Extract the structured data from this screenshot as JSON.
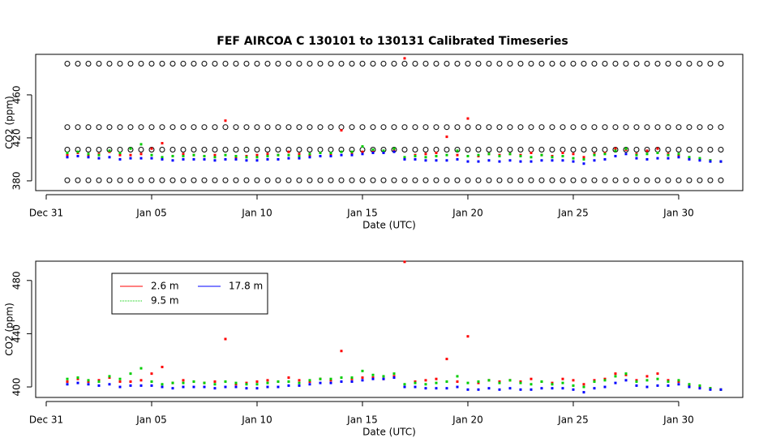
{
  "chart_data": [
    {
      "type": "scatter",
      "title": "FEF   AIRCOA  C    130101  to  130131   Calibrated Timeseries",
      "x_label": "Date (UTC)",
      "y_label": "CO2 (ppm)",
      "xlim": [
        -0.5,
        33.04
      ],
      "ylim": [
        370.9,
        497.7
      ],
      "xticks": [
        {
          "value": 0,
          "label": "Dec 31"
        },
        {
          "value": 5,
          "label": "Jan 05"
        },
        {
          "value": 10,
          "label": "Jan 10"
        },
        {
          "value": 15,
          "label": "Jan 15"
        },
        {
          "value": 20,
          "label": "Jan 20"
        },
        {
          "value": 25,
          "label": "Jan 25"
        },
        {
          "value": 30,
          "label": "Jan 30"
        }
      ],
      "yticks": [
        380,
        420,
        460
      ],
      "reference_levels": [
        380.5,
        409,
        430,
        489
      ],
      "x": [
        1,
        1.5,
        2,
        2.5,
        3,
        3.5,
        4,
        4.5,
        5,
        5.5,
        6,
        6.5,
        7,
        7.5,
        8,
        8.5,
        9,
        9.5,
        10,
        10.5,
        11,
        11.5,
        12,
        12.5,
        13,
        13.5,
        14,
        14.5,
        15,
        15.5,
        16,
        16.5,
        17,
        17.5,
        18,
        18.5,
        19,
        19.5,
        20,
        20.5,
        21,
        21.5,
        22,
        22.5,
        23,
        23.5,
        24,
        24.5,
        25,
        25.5,
        26,
        26.5,
        27,
        27.5,
        28,
        28.5,
        29,
        29.5,
        30,
        30.5,
        31,
        31.5,
        32
      ],
      "series": [
        {
          "color": "#ff0000",
          "values": [
            404,
            406,
            404,
            405,
            407,
            404,
            404,
            405,
            410,
            415,
            403,
            405,
            404,
            403,
            404,
            436,
            402,
            403,
            404,
            405,
            404,
            407,
            405,
            404,
            406,
            405,
            427,
            406,
            407,
            407,
            406,
            408,
            494,
            404,
            405,
            406,
            421,
            404,
            438,
            403,
            405,
            404,
            405,
            404,
            406,
            404,
            403,
            406,
            405,
            402,
            405,
            406,
            410,
            409,
            405,
            408,
            410,
            405,
            404,
            401,
            400,
            399,
            398
          ]
        },
        {
          "color": "#00cd00",
          "values": [
            406,
            407,
            405,
            404,
            408,
            406,
            410,
            414,
            404,
            402,
            403,
            403,
            404,
            403,
            402,
            404,
            403,
            402,
            402,
            403,
            404,
            404,
            403,
            405,
            406,
            406,
            407,
            407,
            412,
            409,
            408,
            410,
            402,
            403,
            402,
            403,
            404,
            408,
            403,
            404,
            405,
            403,
            405,
            403,
            402,
            404,
            402,
            403,
            401,
            400,
            404,
            405,
            408,
            410,
            404,
            405,
            406,
            404,
            405,
            402,
            401,
            399,
            398
          ]
        },
        {
          "color": "#0000ff",
          "values": [
            402,
            403,
            402,
            401,
            402,
            400,
            401,
            401,
            401,
            400,
            399,
            400,
            400,
            400,
            399,
            400,
            400,
            399,
            399,
            400,
            400,
            401,
            401,
            402,
            403,
            403,
            404,
            404,
            405,
            406,
            406,
            407,
            400,
            400,
            399,
            399,
            399,
            400,
            398,
            398,
            399,
            398,
            399,
            398,
            398,
            399,
            399,
            399,
            398,
            396,
            399,
            400,
            403,
            405,
            401,
            400,
            401,
            401,
            402,
            400,
            399,
            398,
            398
          ]
        }
      ]
    },
    {
      "type": "scatter",
      "x_label": "Date (UTC)",
      "y_label": "CO2 (ppm)",
      "xlim": [
        -0.5,
        33.04
      ],
      "ylim": [
        392.1,
        494.5
      ],
      "xticks": [
        {
          "value": 0,
          "label": "Dec 31"
        },
        {
          "value": 5,
          "label": "Jan 05"
        },
        {
          "value": 10,
          "label": "Jan 10"
        },
        {
          "value": 15,
          "label": "Jan 15"
        },
        {
          "value": 20,
          "label": "Jan 20"
        },
        {
          "value": 25,
          "label": "Jan 25"
        },
        {
          "value": 30,
          "label": "Jan 30"
        }
      ],
      "yticks": [
        400,
        440,
        480
      ],
      "legend": "top-left",
      "x": [
        1,
        1.5,
        2,
        2.5,
        3,
        3.5,
        4,
        4.5,
        5,
        5.5,
        6,
        6.5,
        7,
        7.5,
        8,
        8.5,
        9,
        9.5,
        10,
        10.5,
        11,
        11.5,
        12,
        12.5,
        13,
        13.5,
        14,
        14.5,
        15,
        15.5,
        16,
        16.5,
        17,
        17.5,
        18,
        18.5,
        19,
        19.5,
        20,
        20.5,
        21,
        21.5,
        22,
        22.5,
        23,
        23.5,
        24,
        24.5,
        25,
        25.5,
        26,
        26.5,
        27,
        27.5,
        28,
        28.5,
        29,
        29.5,
        30,
        30.5,
        31,
        31.5,
        32
      ],
      "series": [
        {
          "name": "2.6 m",
          "color": "#ff0000",
          "values": [
            404,
            406,
            404,
            405,
            407,
            404,
            404,
            405,
            410,
            415,
            403,
            405,
            404,
            403,
            404,
            436,
            402,
            403,
            404,
            405,
            404,
            407,
            405,
            404,
            406,
            405,
            427,
            406,
            407,
            407,
            406,
            408,
            494,
            404,
            405,
            406,
            421,
            404,
            438,
            403,
            405,
            404,
            405,
            404,
            406,
            404,
            403,
            406,
            405,
            402,
            405,
            406,
            410,
            409,
            405,
            408,
            410,
            405,
            404,
            401,
            400,
            399,
            398
          ]
        },
        {
          "name": "9.5 m",
          "color": "#00cd00",
          "values": [
            406,
            407,
            405,
            404,
            408,
            406,
            410,
            414,
            404,
            402,
            403,
            403,
            404,
            403,
            402,
            404,
            403,
            402,
            402,
            403,
            404,
            404,
            403,
            405,
            406,
            406,
            407,
            407,
            412,
            409,
            408,
            410,
            402,
            403,
            402,
            403,
            404,
            408,
            403,
            404,
            405,
            403,
            405,
            403,
            402,
            404,
            402,
            403,
            401,
            400,
            404,
            405,
            408,
            410,
            404,
            405,
            406,
            404,
            405,
            402,
            401,
            399,
            398
          ]
        },
        {
          "name": "17.8 m",
          "color": "#0000ff",
          "values": [
            402,
            403,
            402,
            401,
            402,
            400,
            401,
            401,
            401,
            400,
            399,
            400,
            400,
            400,
            399,
            400,
            400,
            399,
            399,
            400,
            400,
            401,
            401,
            402,
            403,
            403,
            404,
            404,
            405,
            406,
            406,
            407,
            400,
            400,
            399,
            399,
            399,
            400,
            398,
            398,
            399,
            398,
            399,
            398,
            398,
            399,
            399,
            399,
            398,
            396,
            399,
            400,
            403,
            405,
            401,
            400,
            401,
            401,
            402,
            400,
            399,
            398,
            398
          ]
        }
      ]
    }
  ]
}
